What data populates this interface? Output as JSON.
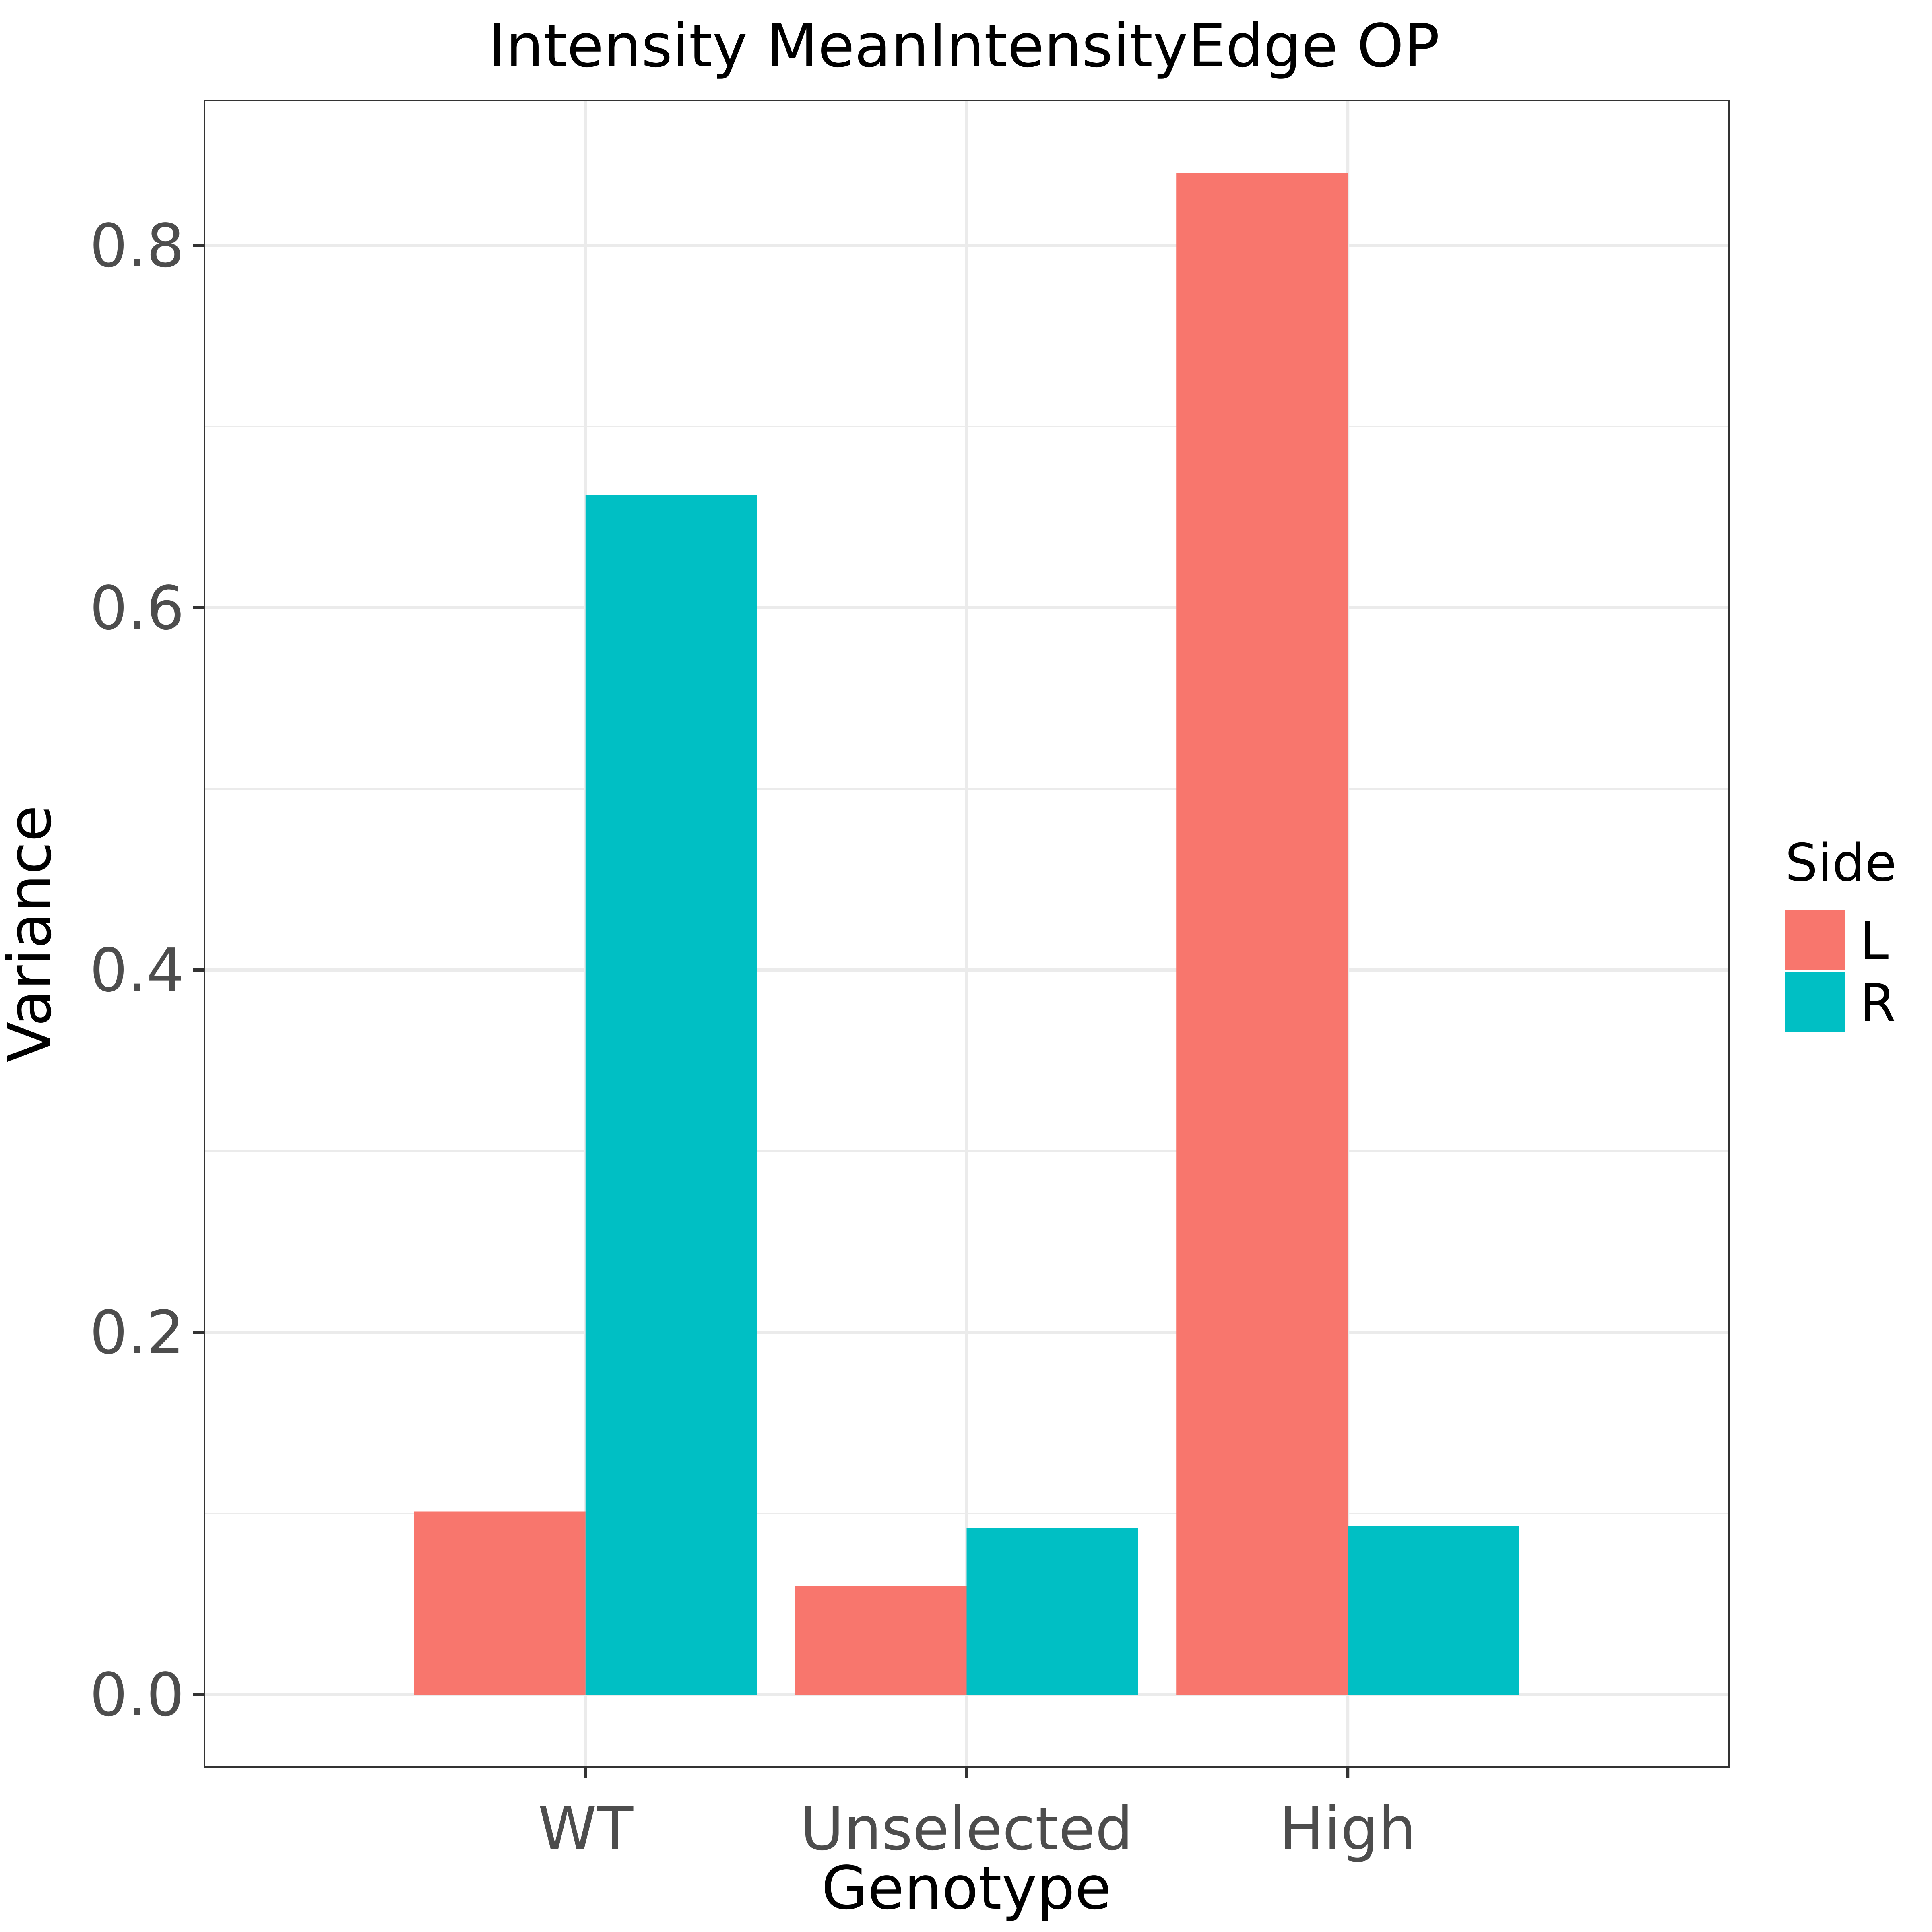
{
  "chart_data": {
    "type": "bar",
    "title": "Intensity MeanIntensityEdge OP",
    "xlabel": "Genotype",
    "ylabel": "Variance",
    "categories": [
      "WT",
      "Unselected",
      "High"
    ],
    "series": [
      {
        "name": "L",
        "color": "#F8766D",
        "values": [
          0.101,
          0.06,
          0.84
        ]
      },
      {
        "name": "R",
        "color": "#00BFC4",
        "values": [
          0.662,
          0.092,
          0.093
        ]
      }
    ],
    "ylim": [
      -0.04,
      0.88
    ],
    "yticks": [
      "0.0",
      "0.2",
      "0.4",
      "0.6",
      "0.8"
    ],
    "ytick_values": [
      0,
      0.2,
      0.4,
      0.6,
      0.8
    ],
    "grid": true,
    "legend": {
      "title": "Side",
      "position": "right"
    }
  }
}
